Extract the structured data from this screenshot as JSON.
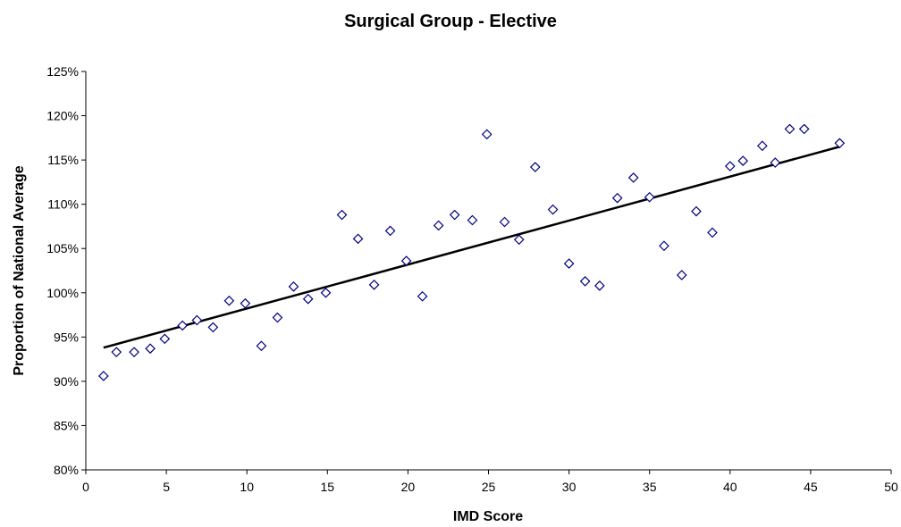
{
  "chart_data": {
    "type": "scatter",
    "title": "Surgical Group - Elective",
    "xlabel": "IMD Score",
    "ylabel": "Proportion of National Average",
    "xlim": [
      0,
      50
    ],
    "ylim": [
      80,
      125
    ],
    "x_ticks": [
      "0",
      "5",
      "10",
      "15",
      "20",
      "25",
      "30",
      "35",
      "40",
      "45",
      "50"
    ],
    "y_ticks": [
      "80%",
      "85%",
      "90%",
      "95%",
      "100%",
      "105%",
      "110%",
      "115%",
      "120%",
      "125%"
    ],
    "grid": false,
    "legend": "none",
    "marker": "diamond",
    "marker_color": "#000080",
    "trendline": {
      "x": [
        1.1,
        46.8
      ],
      "y": [
        93.8,
        116.5
      ],
      "color": "#000000"
    },
    "points": [
      {
        "x": 1.1,
        "y": 90.6
      },
      {
        "x": 1.9,
        "y": 93.3
      },
      {
        "x": 3.0,
        "y": 93.3
      },
      {
        "x": 4.0,
        "y": 93.7
      },
      {
        "x": 4.9,
        "y": 94.8
      },
      {
        "x": 6.0,
        "y": 96.3
      },
      {
        "x": 6.9,
        "y": 96.9
      },
      {
        "x": 7.9,
        "y": 96.1
      },
      {
        "x": 8.9,
        "y": 99.1
      },
      {
        "x": 9.9,
        "y": 98.8
      },
      {
        "x": 10.9,
        "y": 94.0
      },
      {
        "x": 11.9,
        "y": 97.2
      },
      {
        "x": 12.9,
        "y": 100.7
      },
      {
        "x": 13.8,
        "y": 99.3
      },
      {
        "x": 14.9,
        "y": 100.0
      },
      {
        "x": 15.9,
        "y": 108.8
      },
      {
        "x": 16.9,
        "y": 106.1
      },
      {
        "x": 17.9,
        "y": 100.9
      },
      {
        "x": 18.9,
        "y": 107.0
      },
      {
        "x": 19.9,
        "y": 103.6
      },
      {
        "x": 20.9,
        "y": 99.6
      },
      {
        "x": 21.9,
        "y": 107.6
      },
      {
        "x": 22.9,
        "y": 108.8
      },
      {
        "x": 24.0,
        "y": 108.2
      },
      {
        "x": 24.9,
        "y": 117.9
      },
      {
        "x": 26.0,
        "y": 108.0
      },
      {
        "x": 26.9,
        "y": 106.0
      },
      {
        "x": 27.9,
        "y": 114.2
      },
      {
        "x": 29.0,
        "y": 109.4
      },
      {
        "x": 30.0,
        "y": 103.3
      },
      {
        "x": 31.0,
        "y": 101.3
      },
      {
        "x": 31.9,
        "y": 100.8
      },
      {
        "x": 33.0,
        "y": 110.7
      },
      {
        "x": 34.0,
        "y": 113.0
      },
      {
        "x": 35.0,
        "y": 110.8
      },
      {
        "x": 35.9,
        "y": 105.3
      },
      {
        "x": 37.0,
        "y": 102.0
      },
      {
        "x": 37.9,
        "y": 109.2
      },
      {
        "x": 38.9,
        "y": 106.8
      },
      {
        "x": 40.0,
        "y": 114.3
      },
      {
        "x": 40.8,
        "y": 114.9
      },
      {
        "x": 42.0,
        "y": 116.6
      },
      {
        "x": 42.8,
        "y": 114.7
      },
      {
        "x": 43.7,
        "y": 118.5
      },
      {
        "x": 44.6,
        "y": 118.5
      },
      {
        "x": 46.8,
        "y": 116.9
      }
    ]
  }
}
